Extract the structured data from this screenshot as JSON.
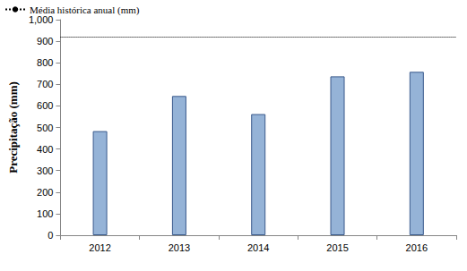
{
  "chart_data": {
    "type": "bar",
    "y_label": "Precipitação (mm)",
    "categories": [
      "2012",
      "2013",
      "2014",
      "2015",
      "2016"
    ],
    "values": [
      483,
      646,
      562,
      737,
      758
    ],
    "color": "#95b3d7",
    "reference_line": {
      "label": "Média histórica anual (mm)",
      "value": 920,
      "line_style": "dotted"
    },
    "ylim": [
      0,
      1000
    ],
    "yticks": [
      0,
      100,
      200,
      300,
      400,
      500,
      600,
      700,
      800,
      900,
      1000
    ],
    "grid": false,
    "legend": "top-left"
  }
}
